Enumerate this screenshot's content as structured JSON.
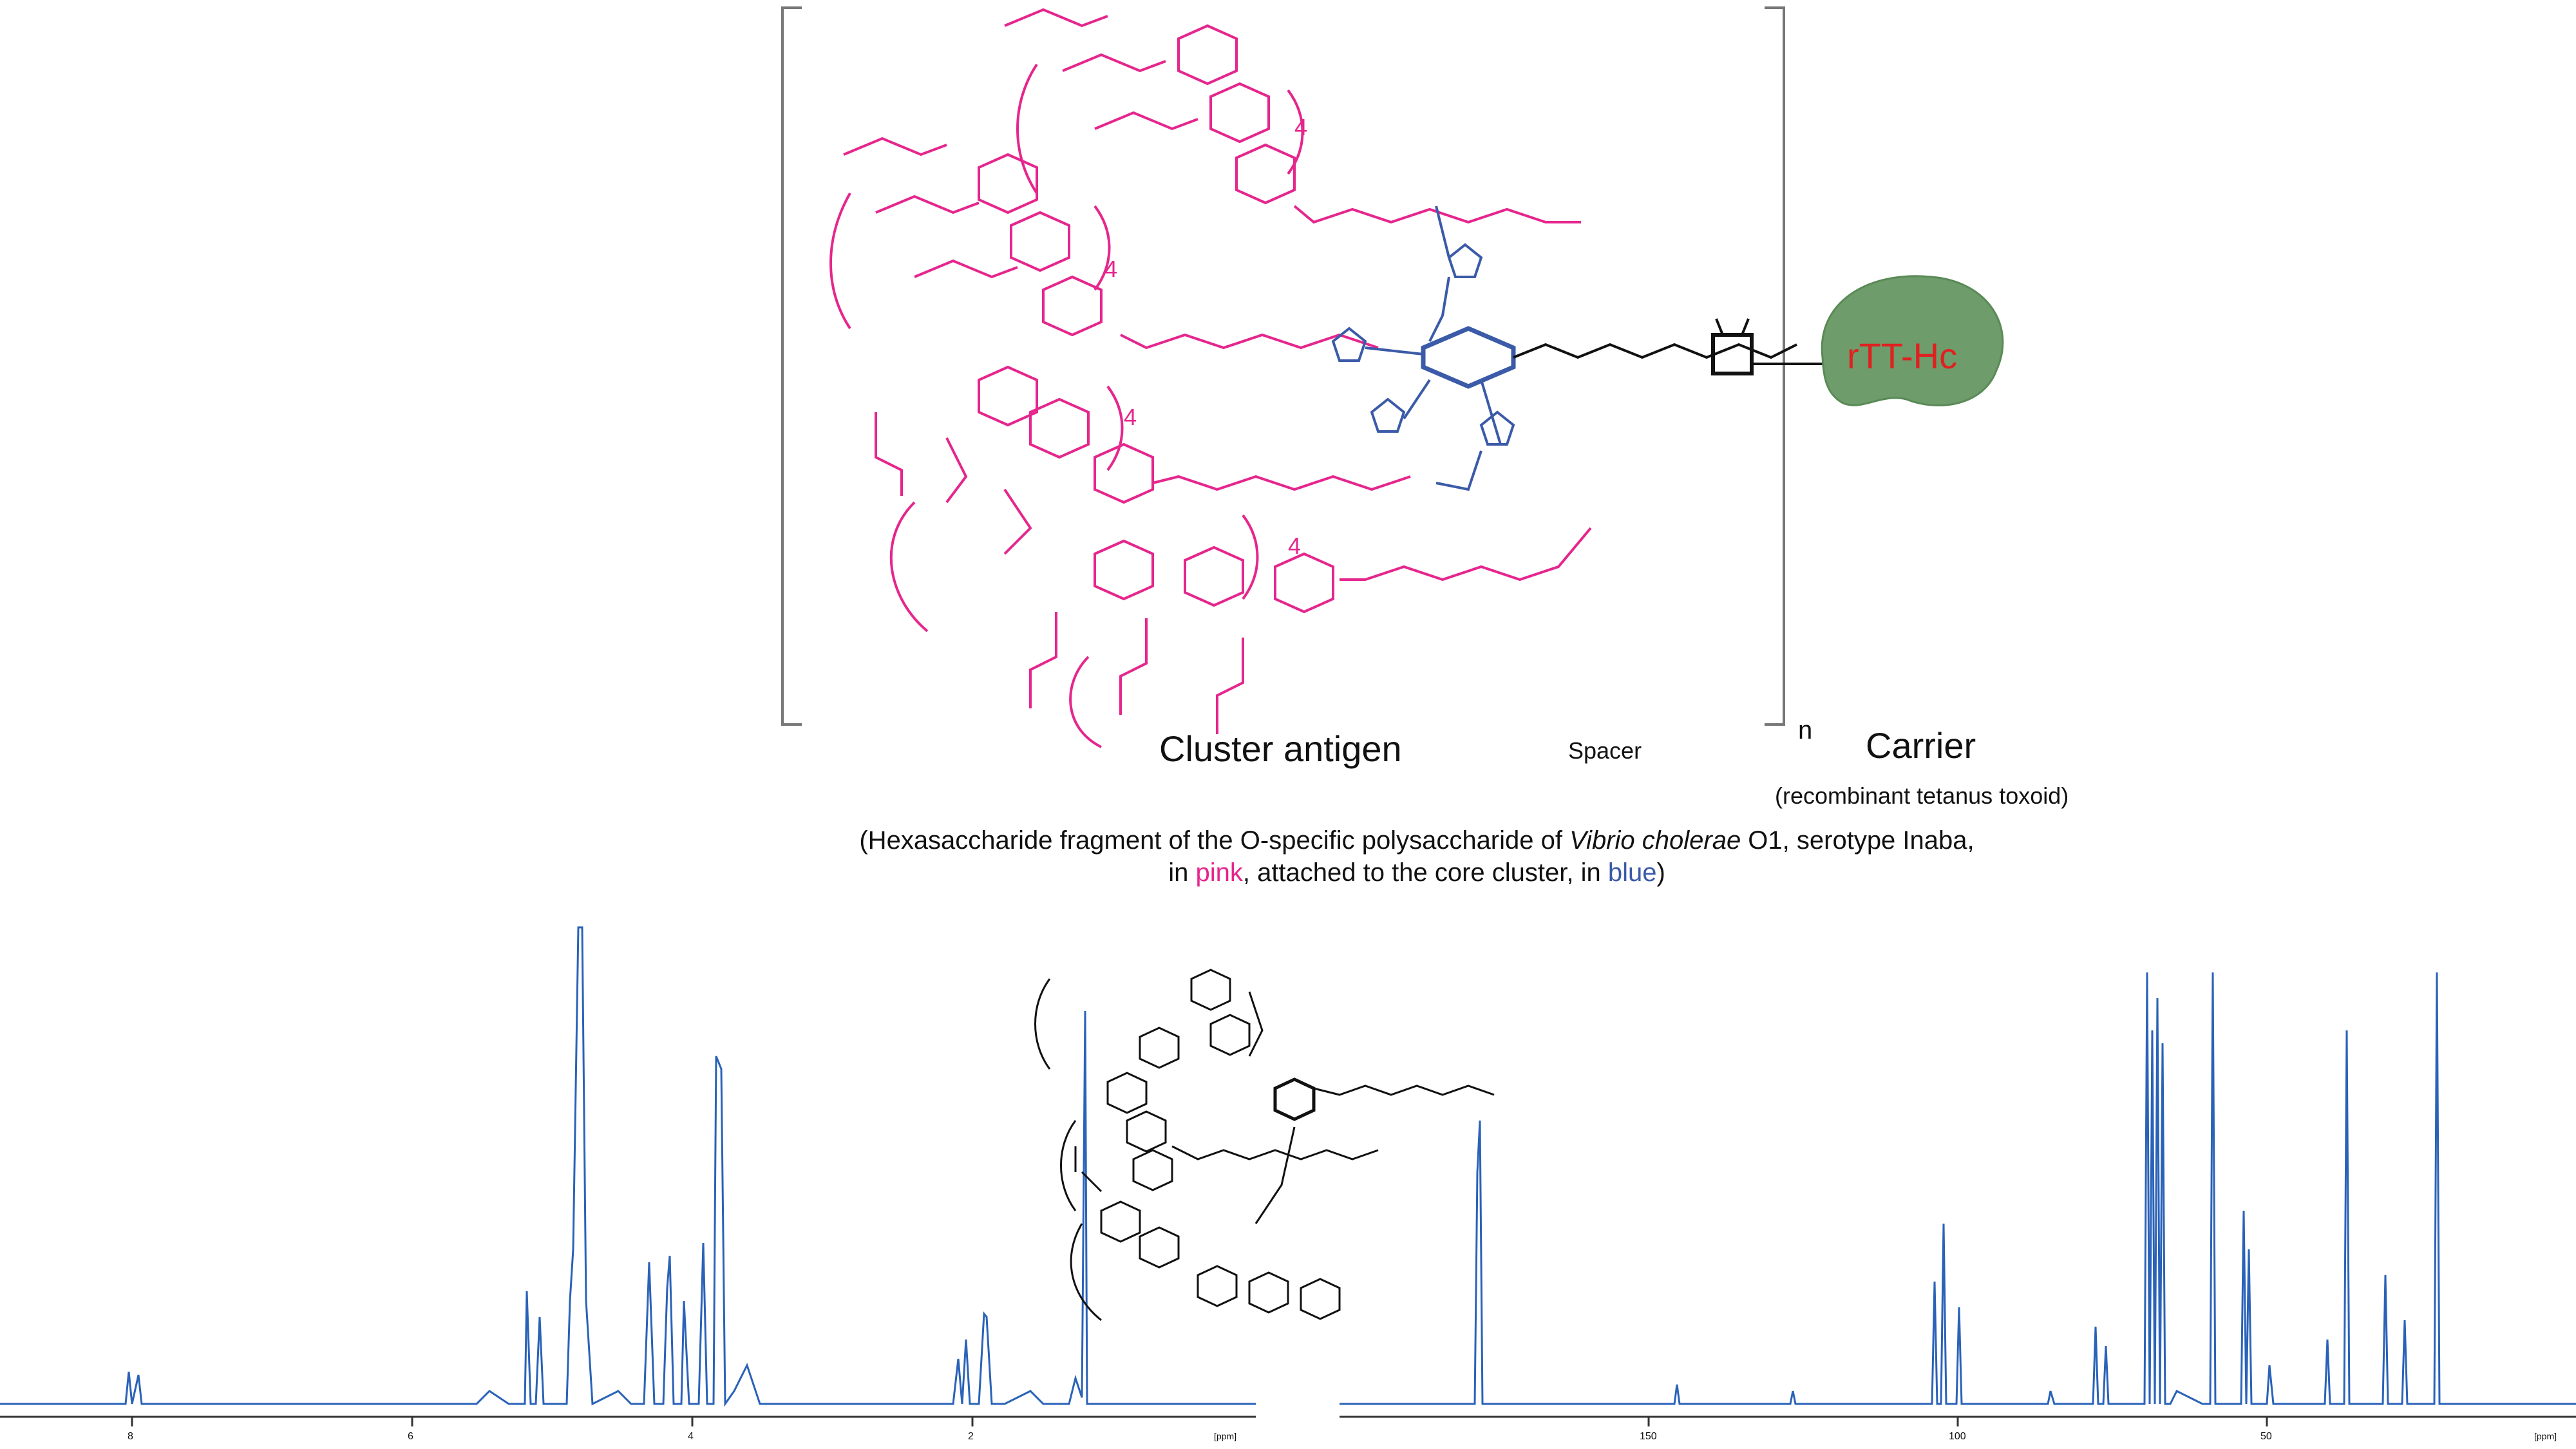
{
  "labels": {
    "cluster_antigen": "Cluster antigen",
    "spacer": "Spacer",
    "carrier": "Carrier",
    "carrier_sub": "(recombinant tetanus toxoid)",
    "carrier_node": "rTT-Hc",
    "n": "n",
    "repeat": "4"
  },
  "caption": {
    "line1_pre": "(Hexasaccharide fragment of the O-specific polysaccharide of ",
    "line1_italic": "Vibrio cholerae",
    "line1_post": " O1, serotype Inaba,",
    "line2_pre": "in ",
    "line2_pink": "pink",
    "line2_mid": ", attached to the core cluster, in ",
    "line2_blue": "blue",
    "line2_post": ")"
  },
  "spectra": {
    "h_unit": "[ppm]",
    "h_ticks": [
      "8",
      "6",
      "4",
      "2"
    ],
    "c_unit": "[ppm]",
    "c_ticks": [
      "150",
      "100",
      "50"
    ]
  },
  "colors": {
    "antigen": "#e5268d",
    "core": "#3b5aa8",
    "carrier_fill": "#6e9c6a",
    "carrier_text": "#e02020",
    "spectrum": "#2a62b8"
  }
}
